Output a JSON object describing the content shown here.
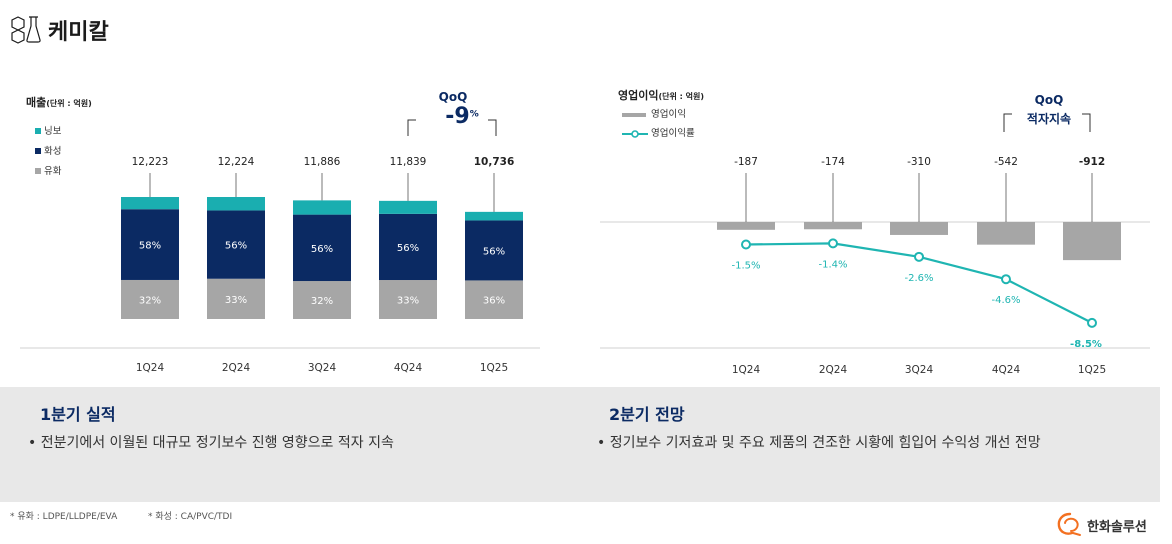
{
  "header": {
    "title": "케미칼"
  },
  "colors": {
    "nav": "#0b2a63",
    "teal": "#1aaeb0",
    "gray": "#a6a6a6",
    "line": "#1fb5b2"
  },
  "chart_data": [
    {
      "type": "bar",
      "title": "매출",
      "unit": "(단위 : 억원)",
      "categories": [
        "1Q24",
        "2Q24",
        "3Q24",
        "4Q24",
        "1Q25"
      ],
      "totals": [
        "12,223",
        "12,224",
        "11,886",
        "11,839",
        "10,736"
      ],
      "total_values": [
        12223,
        12224,
        11886,
        11839,
        10736
      ],
      "series": [
        {
          "name": "유화",
          "color": "#a6a6a6",
          "shares": [
            0.32,
            0.33,
            0.32,
            0.33,
            0.36
          ],
          "labels": [
            "32%",
            "33%",
            "32%",
            "33%",
            "36%"
          ]
        },
        {
          "name": "화성",
          "color": "#0b2a63",
          "shares": [
            0.58,
            0.56,
            0.56,
            0.56,
            0.56
          ],
          "labels": [
            "58%",
            "56%",
            "56%",
            "56%",
            "56%"
          ]
        },
        {
          "name": "닝보",
          "color": "#1aaeb0",
          "shares": [
            0.1,
            0.11,
            0.12,
            0.11,
            0.08
          ]
        }
      ],
      "legend": [
        "닝보",
        "화성",
        "유화"
      ],
      "qoq_label": "QoQ",
      "qoq_value": "-9",
      "qoq_unit": "%"
    },
    {
      "type": "bar+line",
      "title": "영업이익",
      "unit": "(단위 : 억원)",
      "categories": [
        "1Q24",
        "2Q24",
        "3Q24",
        "4Q24",
        "1Q25"
      ],
      "bar_series": {
        "name": "영업이익",
        "color": "#a6a6a6",
        "values": [
          -187,
          -174,
          -310,
          -542,
          -912
        ],
        "labels": [
          "-187",
          "-174",
          "-310",
          "-542",
          "-912"
        ]
      },
      "line_series": {
        "name": "영업이익률",
        "color": "#1fb5b2",
        "values": [
          -1.5,
          -1.4,
          -2.6,
          -4.6,
          -8.5
        ],
        "labels": [
          "-1.5%",
          "-1.4%",
          "-2.6%",
          "-4.6%",
          "-8.5%"
        ]
      },
      "qoq_label": "QoQ",
      "qoq_value": "적자지속"
    }
  ],
  "summary": {
    "left_title": "1분기 실적",
    "left_text": "• 전분기에서 이월된 대규모 정기보수 진행 영향으로 적자 지속",
    "right_title": "2분기 전망",
    "right_text": "• 정기보수 기저효과 및 주요 제품의 견조한 시황에 힘입어 수익성 개선 전망"
  },
  "footnote": {
    "yuhwa": "* 유화 : LDPE/LLDPE/EVA",
    "hwaseong": "* 화성 : CA/PVC/TDI"
  },
  "brand": {
    "name": "한화솔루션"
  }
}
